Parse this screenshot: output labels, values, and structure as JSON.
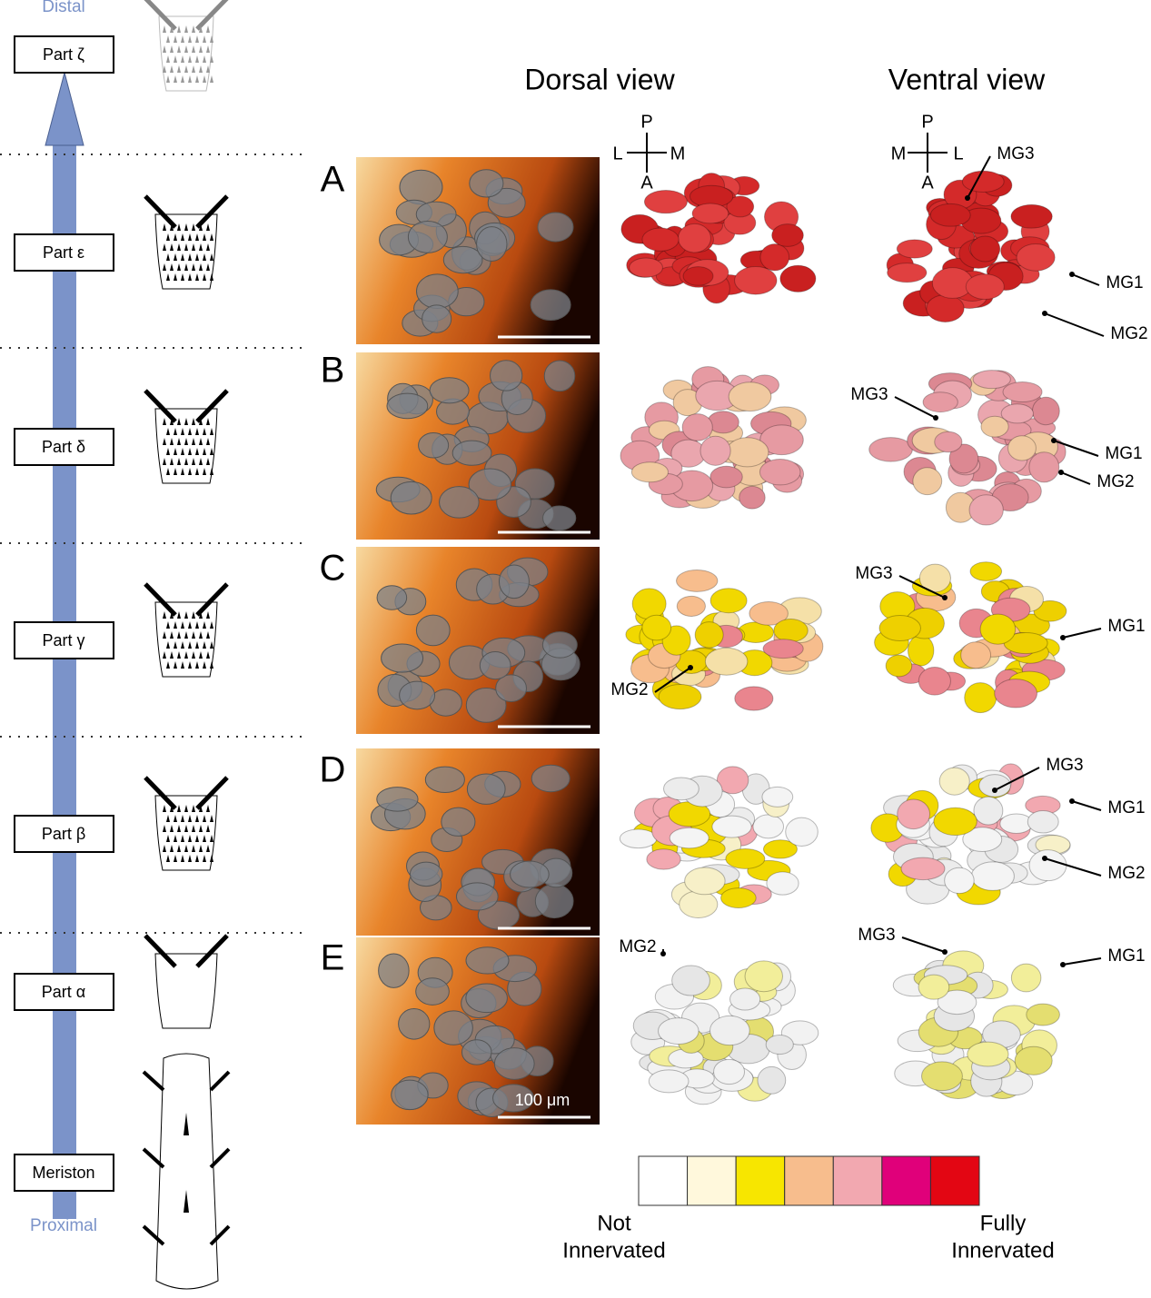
{
  "axis": {
    "top": "Distal",
    "bottom": "Proximal"
  },
  "parts": [
    "Part ζ",
    "Part ε",
    "Part δ",
    "Part γ",
    "Part β",
    "Part α",
    "Meriston"
  ],
  "columns": {
    "dorsal": "Dorsal view",
    "ventral": "Ventral view"
  },
  "orientation": {
    "dorsal": {
      "top": "P",
      "left": "L",
      "right": "M",
      "bottom": "A"
    },
    "ventral": {
      "top": "P",
      "left": "M",
      "right": "L",
      "bottom": "A"
    }
  },
  "rows": [
    {
      "label": "A",
      "annotations": [
        "MG3",
        "MG1",
        "MG2"
      ]
    },
    {
      "label": "B",
      "annotations": [
        "MG3",
        "MG1",
        "MG2"
      ]
    },
    {
      "label": "C",
      "annotations": [
        "MG3",
        "MG1",
        "MG2"
      ]
    },
    {
      "label": "D",
      "annotations": [
        "MG3",
        "MG1",
        "MG2"
      ]
    },
    {
      "label": "E",
      "annotations": [
        "MG2",
        "MG3",
        "MG1"
      ]
    }
  ],
  "scale_bar": "100 μm",
  "legend": {
    "colors": [
      "#ffffff",
      "#fff8dc",
      "#f7e600",
      "#f7bd8d",
      "#f2a8b0",
      "#e0007a",
      "#e30613"
    ],
    "low": [
      "Not",
      "Innervated"
    ],
    "high": [
      "Fully",
      "Innervated"
    ]
  }
}
